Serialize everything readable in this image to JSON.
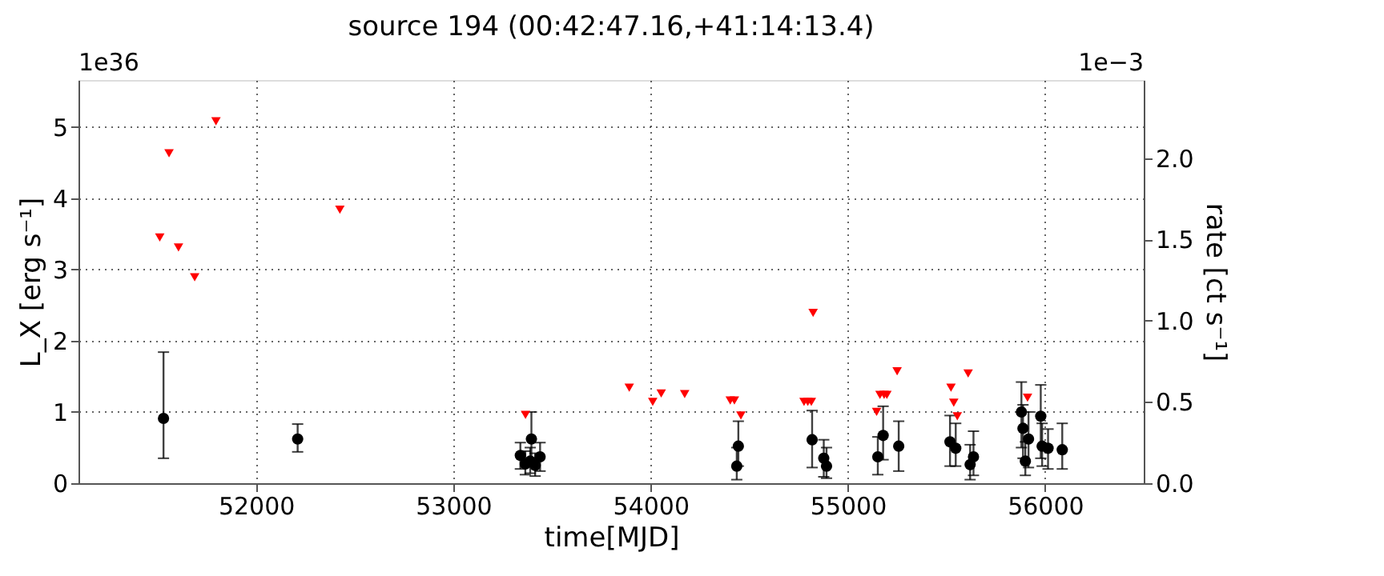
{
  "chart_data": {
    "type": "scatter",
    "title": "source 194 (00:42:47.16,+41:14:13.4)",
    "xlabel": "time[MJD]",
    "ylabel": "L_X [erg s⁻¹]",
    "y2label": "rate [ct s⁻¹]",
    "annotations": [
      "1e36",
      "1e−3"
    ],
    "xlim": [
      51100,
      56500
    ],
    "xticks": [
      52000,
      53000,
      54000,
      55000,
      56000
    ],
    "ylim": [
      0,
      5.66
    ],
    "yticks": [
      0,
      1,
      2,
      3,
      4,
      5
    ],
    "y2lim": [
      0,
      2.48
    ],
    "y2ticks": [
      {
        "value": 0,
        "label": "0.0"
      },
      {
        "value": 0.5,
        "label": "0.5"
      },
      {
        "value": 1,
        "label": "1.0"
      },
      {
        "value": 1.5,
        "label": "1.5"
      },
      {
        "value": 2,
        "label": "2.0"
      }
    ],
    "grid": true,
    "series": [
      {
        "marker": "circle",
        "color": "#000000",
        "x": [
          51531,
          52211,
          53340,
          53365,
          53390,
          53415,
          53440,
          53396,
          54437,
          54445,
          54819,
          54878,
          54892,
          55152,
          55179,
          55258,
          55518,
          55547,
          55620,
          55637,
          55880,
          55888,
          55900,
          55916,
          55978,
          55985,
          56015,
          56087
        ],
        "values": [
          0.91,
          0.62,
          0.39,
          0.27,
          0.31,
          0.25,
          0.37,
          0.62,
          0.24,
          0.52,
          0.61,
          0.35,
          0.24,
          0.37,
          0.67,
          0.52,
          0.58,
          0.49,
          0.26,
          0.37,
          1.0,
          0.77,
          0.31,
          0.62,
          0.94,
          0.52,
          0.49,
          0.47
        ],
        "errors": [
          [
            0.35,
            1.84
          ],
          [
            0.44,
            0.83
          ],
          [
            0.2,
            0.57
          ],
          [
            0.12,
            0.45
          ],
          [
            0.14,
            0.5
          ],
          [
            0.1,
            0.42
          ],
          [
            0.17,
            0.57
          ],
          [
            0.3,
            1.0
          ],
          [
            0.05,
            0.5
          ],
          [
            0.24,
            0.87
          ],
          [
            0.22,
            1.02
          ],
          [
            0.09,
            0.61
          ],
          [
            0.07,
            0.5
          ],
          [
            0.12,
            0.65
          ],
          [
            0.33,
            1.08
          ],
          [
            0.17,
            0.87
          ],
          [
            0.24,
            0.95
          ],
          [
            0.24,
            0.84
          ],
          [
            0.05,
            0.54
          ],
          [
            0.11,
            0.73
          ],
          [
            0.5,
            1.42
          ],
          [
            0.35,
            1.1
          ],
          [
            0.11,
            0.58
          ],
          [
            0.22,
            1.0
          ],
          [
            0.35,
            1.38
          ],
          [
            0.24,
            0.84
          ],
          [
            0.2,
            0.76
          ],
          [
            0.2,
            0.84
          ]
        ]
      },
      {
        "marker": "triangle",
        "color": "#ff0000",
        "x": [
          51512,
          51559,
          51607,
          51689,
          51797,
          52425,
          53366,
          53892,
          54011,
          54054,
          54173,
          54404,
          54425,
          54458,
          54778,
          54797,
          54815,
          54824,
          55146,
          55163,
          55184,
          55198,
          55250,
          55523,
          55537,
          55555,
          55610,
          55911
        ],
        "values": [
          3.45,
          4.63,
          3.31,
          2.89,
          5.08,
          3.84,
          0.96,
          1.34,
          1.14,
          1.26,
          1.25,
          1.16,
          1.16,
          0.95,
          1.14,
          1.14,
          1.14,
          2.39,
          1.0,
          1.24,
          1.24,
          1.24,
          1.57,
          1.34,
          1.13,
          0.94,
          1.54,
          1.2
        ]
      }
    ]
  }
}
